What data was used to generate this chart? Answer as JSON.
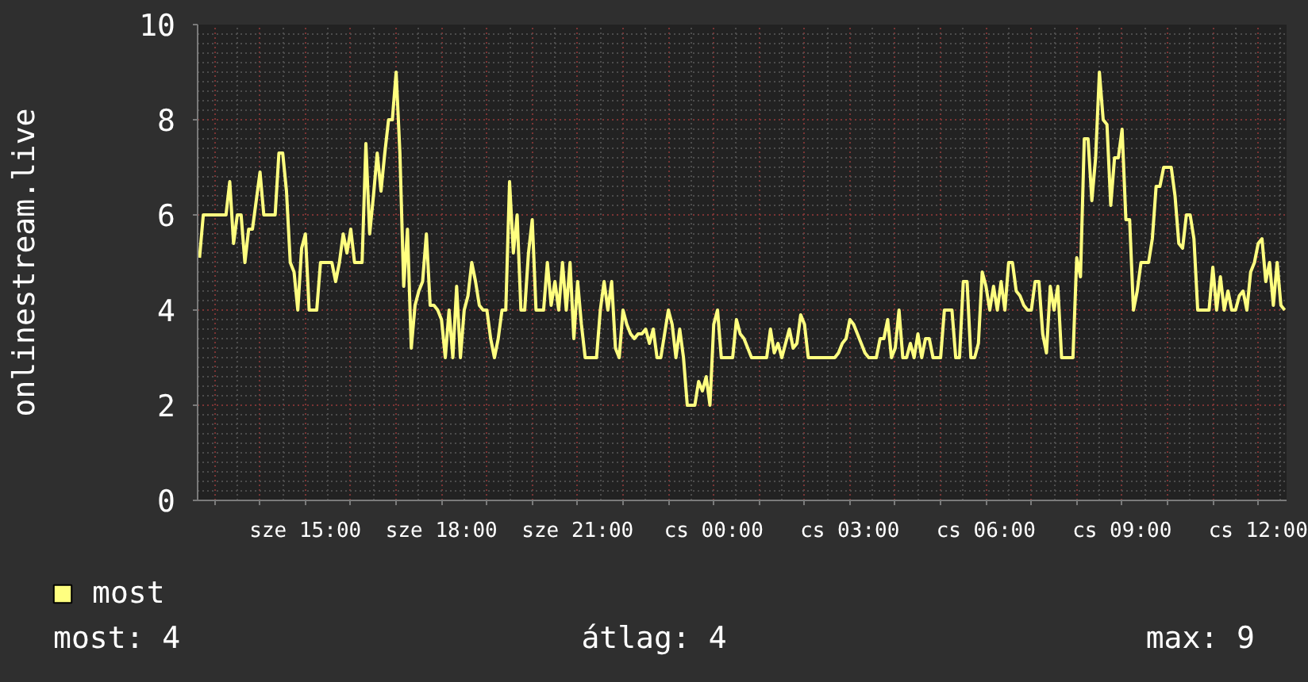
{
  "chart_data": {
    "type": "line",
    "ylabel": "onlinestream.live",
    "categories": [
      null,
      null,
      null,
      null,
      null,
      null,
      null,
      null,
      null,
      null,
      null,
      null,
      null,
      null,
      null,
      null,
      null,
      null,
      null,
      null,
      null,
      null,
      null,
      null,
      null,
      null,
      null,
      null,
      "sze 15:00",
      null,
      null,
      null,
      null,
      null,
      null,
      null,
      null,
      null,
      null,
      null,
      null,
      null,
      null,
      null,
      null,
      null,
      null,
      null,
      null,
      null,
      null,
      null,
      null,
      null,
      null,
      null,
      null,
      null,
      null,
      null,
      null,
      null,
      null,
      null,
      "sze 18:00",
      null,
      null,
      null,
      null,
      null,
      null,
      null,
      null,
      null,
      null,
      null,
      null,
      null,
      null,
      null,
      null,
      null,
      null,
      null,
      null,
      null,
      null,
      null,
      null,
      null,
      null,
      null,
      null,
      null,
      null,
      null,
      null,
      null,
      null,
      null,
      "sze 21:00",
      null,
      null,
      null,
      null,
      null,
      null,
      null,
      null,
      null,
      null,
      null,
      null,
      null,
      null,
      null,
      null,
      null,
      null,
      null,
      null,
      null,
      null,
      null,
      null,
      null,
      null,
      null,
      null,
      null,
      null,
      null,
      null,
      null,
      null,
      null,
      "cs 00:00",
      null,
      null,
      null,
      null,
      null,
      null,
      null,
      null,
      null,
      null,
      null,
      null,
      null,
      null,
      null,
      null,
      null,
      null,
      null,
      null,
      null,
      null,
      null,
      null,
      null,
      null,
      null,
      null,
      null,
      null,
      null,
      null,
      null,
      null,
      null,
      "cs 03:00",
      null,
      null,
      null,
      null,
      null,
      null,
      null,
      null,
      null,
      null,
      null,
      null,
      null,
      null,
      null,
      null,
      null,
      null,
      null,
      null,
      null,
      null,
      null,
      null,
      null,
      null,
      null,
      null,
      null,
      null,
      null,
      null,
      null,
      null,
      null,
      "cs 06:00",
      null,
      null,
      null,
      null,
      null,
      null,
      null,
      null,
      null,
      null,
      null,
      null,
      null,
      null,
      null,
      null,
      null,
      null,
      null,
      null,
      null,
      null,
      null,
      null,
      null,
      null,
      null,
      null,
      null,
      null,
      null,
      null,
      null,
      null,
      null,
      "cs 09:00",
      null,
      null,
      null,
      null,
      null,
      null,
      null,
      null,
      null,
      null,
      null,
      null,
      null,
      null,
      null,
      null,
      null,
      null,
      null,
      null,
      null,
      null,
      null,
      null,
      null,
      null,
      null,
      null,
      null,
      null,
      null,
      null,
      null,
      null,
      null,
      "cs 12:00",
      null,
      null,
      null,
      null,
      null,
      null,
      null
    ],
    "series": [
      {
        "name": "most",
        "color": "#ffff80",
        "values": [
          5.1,
          6.0,
          6.0,
          6.0,
          6.0,
          6.0,
          6.0,
          6.0,
          6.7,
          5.4,
          6.0,
          6.0,
          5.0,
          5.7,
          5.7,
          6.3,
          6.9,
          6.0,
          6.0,
          6.0,
          6.0,
          7.3,
          7.3,
          6.5,
          5.0,
          4.8,
          4.0,
          5.3,
          5.6,
          4.0,
          4.0,
          4.0,
          5.0,
          5.0,
          5.0,
          5.0,
          4.6,
          5.0,
          5.6,
          5.2,
          5.7,
          5.0,
          5.0,
          5.0,
          7.5,
          5.6,
          6.4,
          7.3,
          6.5,
          7.3,
          8.0,
          8.0,
          9.0,
          7.3,
          4.5,
          5.7,
          3.2,
          4.1,
          4.4,
          4.6,
          5.6,
          4.1,
          4.1,
          4.0,
          3.8,
          3.0,
          4.0,
          3.0,
          4.5,
          3.0,
          4.0,
          4.3,
          5.0,
          4.6,
          4.1,
          4.0,
          4.0,
          3.4,
          3.0,
          3.4,
          4.0,
          4.0,
          6.7,
          5.2,
          6.0,
          4.0,
          4.0,
          5.2,
          5.9,
          4.0,
          4.0,
          4.0,
          5.0,
          4.1,
          4.6,
          4.0,
          5.0,
          4.0,
          5.0,
          3.4,
          4.6,
          3.7,
          3.0,
          3.0,
          3.0,
          3.0,
          4.0,
          4.6,
          4.0,
          4.6,
          3.2,
          3.0,
          4.0,
          3.7,
          3.5,
          3.4,
          3.5,
          3.5,
          3.6,
          3.3,
          3.6,
          3.0,
          3.0,
          3.5,
          4.0,
          3.7,
          3.0,
          3.6,
          3.0,
          2.0,
          2.0,
          2.0,
          2.5,
          2.3,
          2.6,
          2.0,
          3.7,
          4.0,
          3.0,
          3.0,
          3.0,
          3.0,
          3.8,
          3.5,
          3.4,
          3.2,
          3.0,
          3.0,
          3.0,
          3.0,
          3.0,
          3.6,
          3.1,
          3.3,
          3.0,
          3.3,
          3.6,
          3.2,
          3.3,
          3.9,
          3.7,
          3.0,
          3.0,
          3.0,
          3.0,
          3.0,
          3.0,
          3.0,
          3.0,
          3.1,
          3.3,
          3.4,
          3.8,
          3.7,
          3.5,
          3.3,
          3.1,
          3.0,
          3.0,
          3.0,
          3.4,
          3.4,
          3.8,
          3.0,
          3.2,
          4.0,
          3.0,
          3.0,
          3.3,
          3.0,
          3.5,
          3.0,
          3.4,
          3.4,
          3.0,
          3.0,
          3.0,
          4.0,
          4.0,
          4.0,
          3.0,
          3.0,
          4.6,
          4.6,
          3.0,
          3.0,
          3.3,
          4.8,
          4.5,
          4.0,
          4.5,
          4.0,
          4.6,
          4.0,
          5.0,
          5.0,
          4.4,
          4.3,
          4.1,
          4.0,
          4.0,
          4.6,
          4.6,
          3.5,
          3.1,
          4.5,
          4.0,
          4.5,
          3.0,
          3.0,
          3.0,
          3.0,
          5.1,
          4.7,
          7.6,
          7.6,
          6.3,
          7.2,
          9.0,
          8.0,
          7.9,
          6.2,
          7.2,
          7.2,
          7.8,
          5.9,
          5.9,
          4.0,
          4.4,
          5.0,
          5.0,
          5.0,
          5.5,
          6.6,
          6.6,
          7.0,
          7.0,
          7.0,
          6.4,
          5.4,
          5.3,
          6.0,
          6.0,
          5.5,
          4.0,
          4.0,
          4.0,
          4.0,
          4.9,
          4.0,
          4.7,
          4.0,
          4.4,
          4.0,
          4.0,
          4.3,
          4.4,
          4.0,
          4.8,
          5.0,
          5.4,
          5.5,
          4.6,
          5.0,
          4.1,
          5.0,
          4.1,
          4.0
        ]
      }
    ],
    "ylim": [
      0,
      10
    ],
    "yticks": [
      0,
      2,
      4,
      6,
      8,
      10
    ],
    "grid": true,
    "legend": "bottom left",
    "annotations": [
      "most: 4",
      "átlag: 4",
      "max: 9"
    ]
  }
}
